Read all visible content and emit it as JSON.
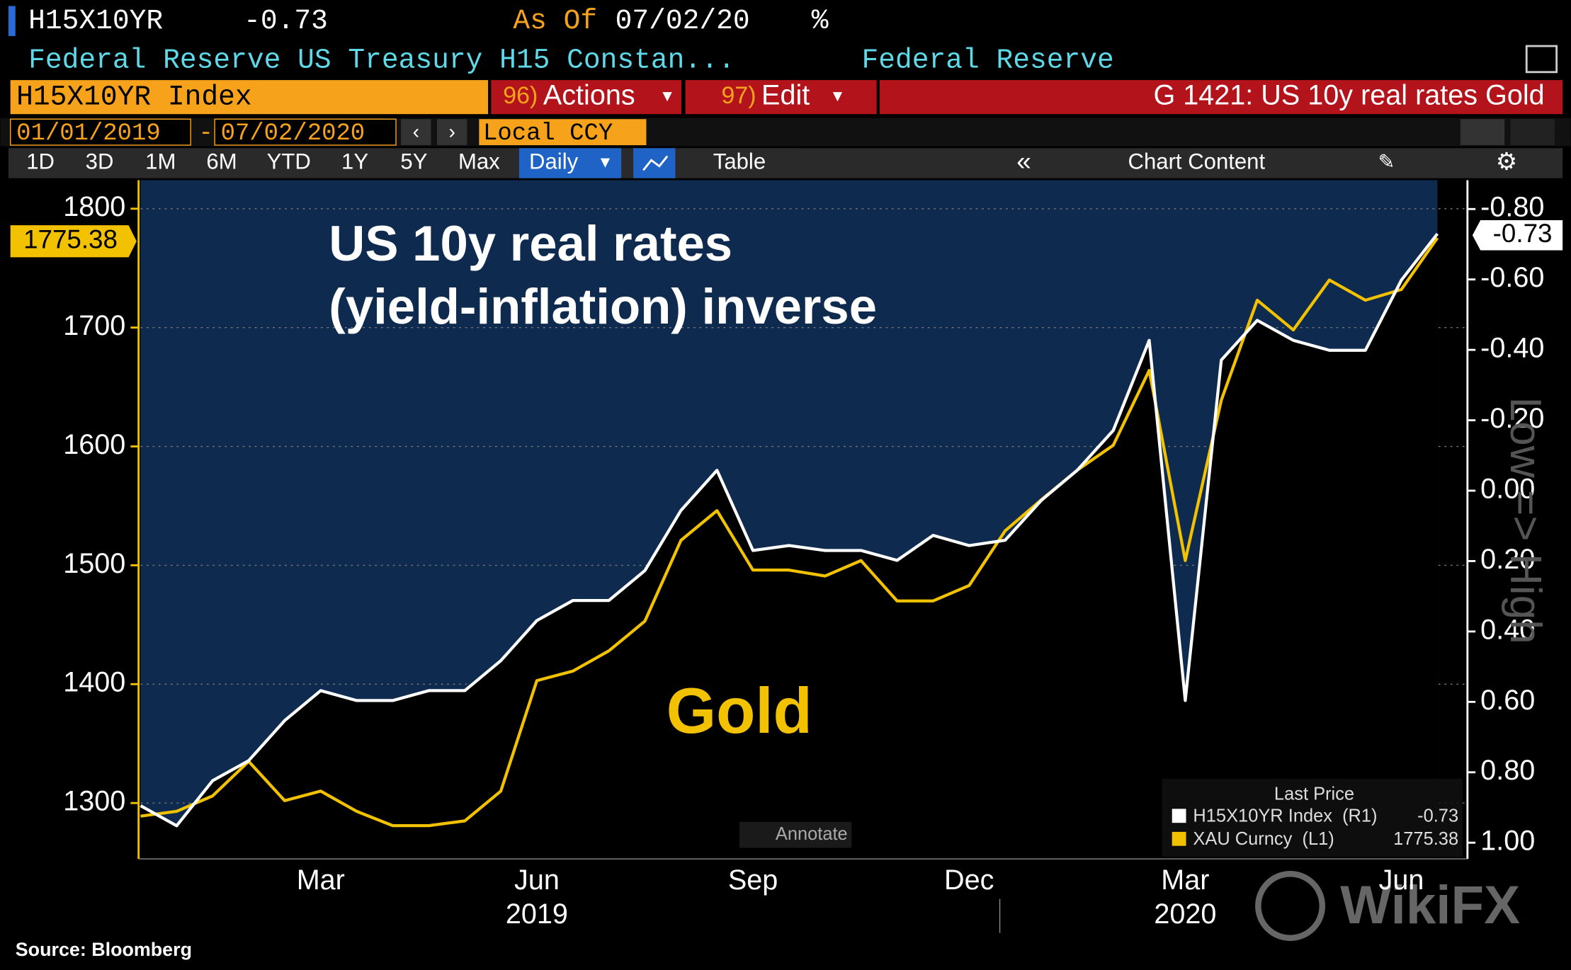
{
  "header": {
    "ticker": "H15X10YR",
    "value": "-0.73",
    "as_of_label": "As Of",
    "as_of": "07/02/20",
    "unit": "%",
    "description": "Federal Reserve US Treasury H15 Constan...",
    "source_name": "Federal Reserve"
  },
  "toolbar": {
    "security": "H15X10YR Index",
    "actions_num": "96)",
    "actions": "Actions",
    "edit_num": "97)",
    "edit": "Edit",
    "chart_name": "G 1421: US 10y real rates Gold"
  },
  "range": {
    "start": "01/01/2019",
    "separator": "-",
    "end": "07/02/2020",
    "currency": "Local CCY"
  },
  "periods": [
    "1D",
    "3D",
    "1M",
    "6M",
    "YTD",
    "1Y",
    "5Y",
    "Max"
  ],
  "frequency": "Daily",
  "table": "Table",
  "chart_content": "Chart Content",
  "annotate": "Annotate",
  "footer": "Source: Bloomberg",
  "watermark": "WikiFX",
  "chart_data": {
    "type": "line",
    "title_lines": [
      "US 10y real rates",
      "(yield-inflation) inverse"
    ],
    "annotation": "Gold",
    "y2_label": "Low => High",
    "legend_title": "Last Price",
    "categories": [
      null,
      null,
      null,
      null,
      null,
      "Mar",
      null,
      null,
      null,
      null,
      null,
      "Jun",
      null,
      null,
      null,
      null,
      null,
      "Sep",
      null,
      null,
      null,
      null,
      null,
      "Dec",
      null,
      null,
      null,
      null,
      null,
      "Mar",
      null,
      null,
      null,
      null,
      null,
      "Jun",
      null
    ],
    "years": [
      {
        "index": 11,
        "label": "2019"
      },
      {
        "index": 29,
        "label": "2020"
      }
    ],
    "ylim": [
      1253,
      1824
    ],
    "yticks": [
      1300,
      1400,
      1500,
      1600,
      1700,
      1800
    ],
    "y2lim": [
      1.046,
      -0.882
    ],
    "y2ticks": [
      {
        "value": -0.8,
        "label": "-0.80"
      },
      {
        "value": -0.6,
        "label": "-0.60"
      },
      {
        "value": -0.4,
        "label": "-0.40"
      },
      {
        "value": -0.2,
        "label": "-0.20"
      },
      {
        "value": 0,
        "label": "0.00"
      },
      {
        "value": 0.2,
        "label": "0.20"
      },
      {
        "value": 0.4,
        "label": "0.40"
      },
      {
        "value": 0.6,
        "label": "0.60"
      },
      {
        "value": 0.8,
        "label": "0.80"
      },
      {
        "value": 1,
        "label": "1.00"
      }
    ],
    "grid": true,
    "series": [
      {
        "name": "H15X10YR Index",
        "tag": "(R1)",
        "axis": "y2",
        "color": "#ffffff",
        "values": [
          0.895,
          0.952,
          0.824,
          0.767,
          0.653,
          0.568,
          0.596,
          0.596,
          0.568,
          0.568,
          0.483,
          0.369,
          0.312,
          0.312,
          0.227,
          0.056,
          -0.058,
          0.17,
          0.156,
          0.17,
          0.17,
          0.198,
          0.127,
          0.156,
          0.141,
          0.028,
          -0.058,
          -0.171,
          -0.427,
          0.596,
          -0.371,
          -0.484,
          -0.427,
          -0.399,
          -0.399,
          -0.598,
          -0.73
        ]
      },
      {
        "name": "XAU Curncy",
        "tag": "(L1)",
        "axis": "y",
        "color": "#f2c200",
        "values": [
          1289,
          1293,
          1306,
          1335,
          1302,
          1310,
          1293,
          1281,
          1281,
          1285,
          1310,
          1403,
          1411,
          1428,
          1453,
          1521,
          1546,
          1496,
          1496,
          1491,
          1504,
          1470,
          1470,
          1483,
          1529,
          1555,
          1580,
          1601,
          1664,
          1504,
          1639,
          1723,
          1698,
          1740,
          1723,
          1732,
          1775.38
        ]
      }
    ]
  }
}
